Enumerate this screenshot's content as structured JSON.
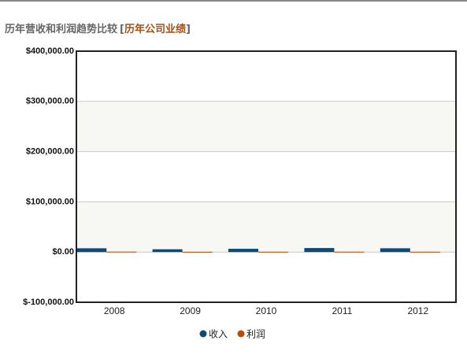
{
  "chart_data": {
    "type": "bar",
    "title": "历年营收和利润趋势比较",
    "title_link": {
      "open": "[",
      "text": "历年公司业绩",
      "close": "]"
    },
    "categories": [
      "2008",
      "2009",
      "2010",
      "2011",
      "2012"
    ],
    "series": [
      {
        "name": "收入",
        "color": "#0e4a78",
        "values": [
          7500,
          5500,
          6500,
          8000,
          7500
        ]
      },
      {
        "name": "利润",
        "color": "#b94a0c",
        "values": [
          800,
          500,
          600,
          700,
          600
        ]
      }
    ],
    "ylim": [
      -100000,
      400000
    ],
    "yticks": [
      {
        "value": -100000,
        "label": "$-100,000.00"
      },
      {
        "value": 0,
        "label": "$0.00"
      },
      {
        "value": 100000,
        "label": "$100,000.00"
      },
      {
        "value": 200000,
        "label": "$200,000.00"
      },
      {
        "value": 300000,
        "label": "$300,000.00"
      },
      {
        "value": 400000,
        "label": "$400,000.00"
      }
    ],
    "grid": true,
    "legend": "bottom"
  }
}
